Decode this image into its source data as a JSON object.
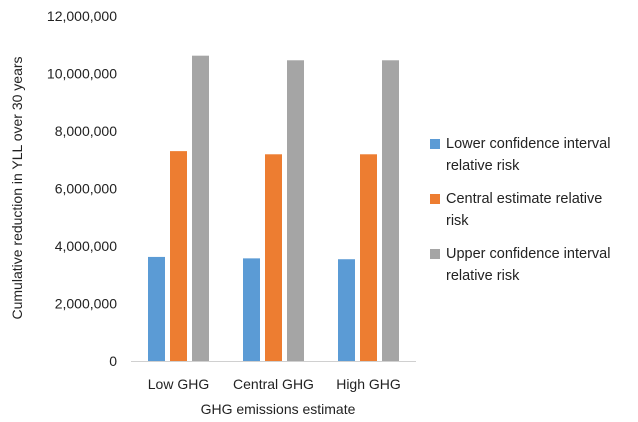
{
  "chart_data": {
    "type": "bar",
    "categories": [
      "Low GHG",
      "Central GHG",
      "High GHG"
    ],
    "series": [
      {
        "name": "Lower confidence interval relative risk",
        "color": "#5b9bd5",
        "values": [
          3620000,
          3570000,
          3540000
        ]
      },
      {
        "name": "Central estimate relative risk",
        "color": "#ed7d31",
        "values": [
          7300000,
          7190000,
          7190000
        ]
      },
      {
        "name": "Upper confidence interval relative risk",
        "color": "#a5a5a5",
        "values": [
          10620000,
          10460000,
          10460000
        ]
      }
    ],
    "xlabel": "GHG emissions estimate",
    "ylabel": "Cumulative reduction in YLL over 30 years",
    "ylim": [
      0,
      12000000
    ],
    "yticks": [
      0,
      2000000,
      4000000,
      6000000,
      8000000,
      10000000,
      12000000
    ],
    "ytick_labels": [
      "0",
      "2,000,000",
      "4,000,000",
      "6,000,000",
      "8,000,000",
      "10,000,000",
      "12,000,000"
    ],
    "legend_position": "right",
    "legend_lines": [
      [
        "Lower confidence interval",
        "relative risk"
      ],
      [
        "Central estimate relative",
        "risk"
      ],
      [
        "Upper confidence interval",
        "relative risk"
      ]
    ],
    "grid": false
  }
}
